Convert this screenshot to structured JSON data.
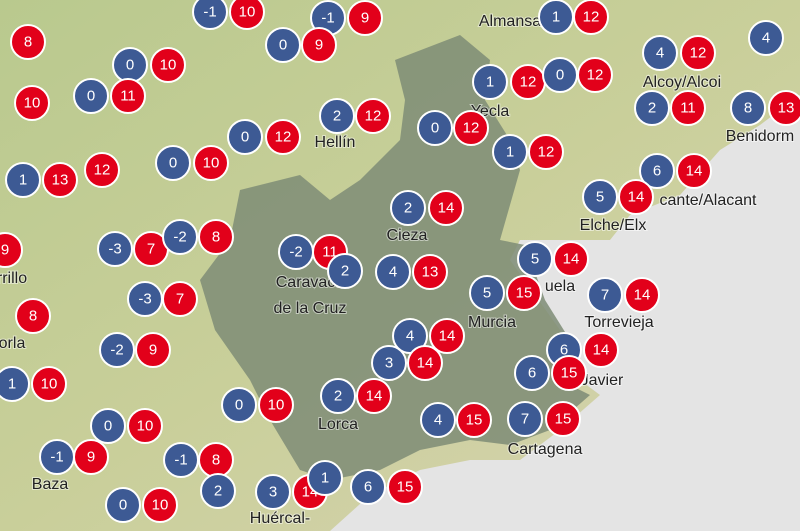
{
  "places": [
    {
      "label": "Almansa"
    },
    {
      "label": "Alcoy/Alcoi"
    },
    {
      "label": "Benidorm"
    },
    {
      "label": "Yecla"
    },
    {
      "label": "Hellín"
    },
    {
      "label": "Cieza"
    },
    {
      "label": "Elche/Elx"
    },
    {
      "label": "cante/Alacant"
    },
    {
      "label": "Caravaca"
    },
    {
      "label": "de la Cruz"
    },
    {
      "label": "uela"
    },
    {
      "label": "Murcia"
    },
    {
      "label": "Torrevieja"
    },
    {
      "label": "Javier"
    },
    {
      "label": "Lorca"
    },
    {
      "label": "Cartagena"
    },
    {
      "label": "Baza"
    },
    {
      "label": "Huércal-"
    },
    {
      "label": "rrillo"
    },
    {
      "label": "orla"
    }
  ],
  "stations": [
    {
      "min": -1,
      "max": 10
    },
    {
      "min": -1,
      "max": 9
    },
    {
      "min": 1,
      "max": 12
    },
    {
      "min": 4
    },
    {
      "max": 8
    },
    {
      "min": 0,
      "max": 10
    },
    {
      "min": 0,
      "max": 11
    },
    {
      "min": 0,
      "max": 9
    },
    {
      "min": 1,
      "max": 12
    },
    {
      "min": 0,
      "max": 12
    },
    {
      "min": 4,
      "max": 12
    },
    {
      "min": 2,
      "max": 11
    },
    {
      "min": 8,
      "max": 13
    },
    {
      "max": 10
    },
    {
      "min": 2,
      "max": 12
    },
    {
      "min": 0,
      "max": 12
    },
    {
      "min": 0,
      "max": 12
    },
    {
      "min": 1,
      "max": 12
    },
    {
      "min": 0,
      "max": 10
    },
    {
      "min": 1,
      "max": 13
    },
    {
      "max": 12
    },
    {
      "min": 6,
      "max": 14
    },
    {
      "min": 5,
      "max": 14
    },
    {
      "min": 2,
      "max": 14
    },
    {
      "max": 9
    },
    {
      "min": -3,
      "max": 7
    },
    {
      "min": -2,
      "max": 8
    },
    {
      "min": -2,
      "max": 11
    },
    {
      "min": 2
    },
    {
      "min": 4,
      "max": 13
    },
    {
      "min": 5,
      "max": 14
    },
    {
      "min": 5,
      "max": 15
    },
    {
      "min": 7,
      "max": 14
    },
    {
      "min": -3,
      "max": 7
    },
    {
      "max": 8
    },
    {
      "min": 4,
      "max": 14
    },
    {
      "min": -2,
      "max": 9
    },
    {
      "min": 6,
      "max": 14
    },
    {
      "min": 3,
      "max": 14
    },
    {
      "min": 6,
      "max": 15
    },
    {
      "min": 1,
      "max": 10
    },
    {
      "min": 2,
      "max": 14
    },
    {
      "min": 0,
      "max": 10
    },
    {
      "min": 0,
      "max": 10
    },
    {
      "min": 4,
      "max": 15
    },
    {
      "min": 7,
      "max": 15
    },
    {
      "min": -1,
      "max": 9
    },
    {
      "min": -1,
      "max": 8
    },
    {
      "min": 0,
      "max": 10
    },
    {
      "min": 2
    },
    {
      "min": 3,
      "max": 14
    },
    {
      "min": 1
    },
    {
      "min": 6,
      "max": 15
    }
  ]
}
